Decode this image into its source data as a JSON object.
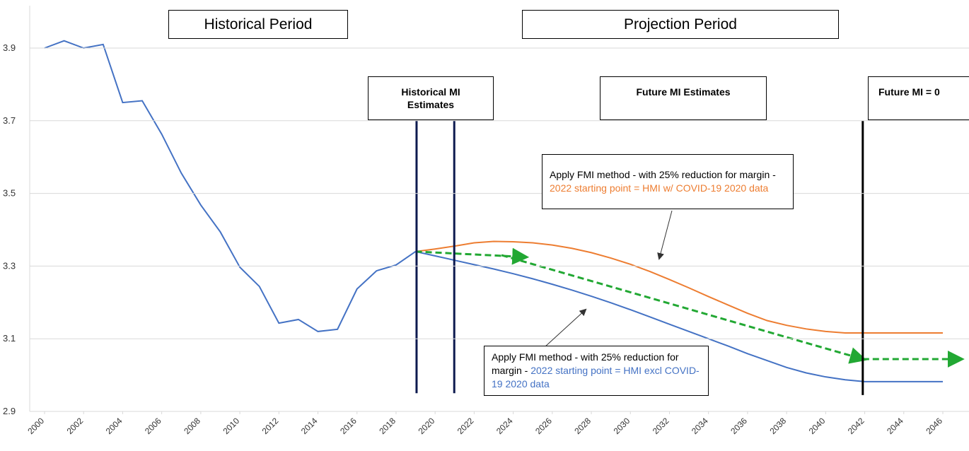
{
  "chart_data": {
    "type": "line",
    "xlim": [
      2000,
      2046
    ],
    "ylim": [
      2.9,
      4.0
    ],
    "xticks": [
      2000,
      2002,
      2004,
      2006,
      2008,
      2010,
      2012,
      2014,
      2016,
      2018,
      2020,
      2022,
      2024,
      2026,
      2028,
      2030,
      2032,
      2034,
      2036,
      2038,
      2040,
      2042,
      2044,
      2046
    ],
    "yticks": [
      2.9,
      3.1,
      3.3,
      3.5,
      3.7,
      3.9
    ],
    "grid": true,
    "series": [
      {
        "color": "#4472c4",
        "x": [
          2000,
          2001,
          2002,
          2003,
          2004,
          2005,
          2006,
          2007,
          2008,
          2009,
          2010,
          2011,
          2012,
          2013,
          2014,
          2015,
          2016,
          2017,
          2018,
          2019
        ],
        "values": [
          3.9,
          3.92,
          3.9,
          3.91,
          3.75,
          3.755,
          3.663,
          3.556,
          3.468,
          3.394,
          3.297,
          3.244,
          3.143,
          3.153,
          3.12,
          3.126,
          3.237,
          3.287,
          3.303,
          3.34
        ]
      },
      {
        "color": "#ed7d31",
        "x": [
          2019,
          2020,
          2021,
          2022,
          2023,
          2024,
          2025,
          2026,
          2027,
          2028,
          2029,
          2030,
          2031,
          2032,
          2033,
          2034,
          2035,
          2036,
          2037,
          2038,
          2039,
          2040,
          2041,
          2042,
          2043,
          2044,
          2045,
          2046
        ],
        "values": [
          3.34,
          3.347,
          3.355,
          3.364,
          3.368,
          3.367,
          3.364,
          3.358,
          3.349,
          3.337,
          3.322,
          3.305,
          3.285,
          3.263,
          3.24,
          3.216,
          3.193,
          3.17,
          3.15,
          3.137,
          3.127,
          3.12,
          3.116,
          3.116,
          3.116,
          3.116,
          3.116,
          3.116
        ]
      },
      {
        "color": "#4472c4",
        "x": [
          2019,
          2020,
          2021,
          2022,
          2023,
          2024,
          2025,
          2026,
          2027,
          2028,
          2029,
          2030,
          2031,
          2032,
          2033,
          2034,
          2035,
          2036,
          2037,
          2038,
          2039,
          2040,
          2041,
          2042,
          2043,
          2044,
          2045,
          2046
        ],
        "values": [
          3.34,
          3.328,
          3.316,
          3.304,
          3.292,
          3.279,
          3.265,
          3.25,
          3.234,
          3.217,
          3.199,
          3.18,
          3.16,
          3.14,
          3.12,
          3.1,
          3.08,
          3.059,
          3.04,
          3.021,
          3.006,
          2.995,
          2.987,
          2.982,
          2.982,
          2.982,
          2.982,
          2.982
        ]
      }
    ],
    "arrows": [
      {
        "color": "#22a833",
        "x": [
          2019,
          2024.6
        ],
        "values": [
          3.34,
          3.325
        ]
      },
      {
        "color": "#22a833",
        "x": [
          2023.4,
          2041.9
        ],
        "values": [
          3.33,
          3.044
        ]
      },
      {
        "color": "#22a833",
        "x": [
          2041.9,
          2046.9
        ],
        "values": [
          3.044,
          3.044
        ]
      }
    ],
    "vlines": [
      {
        "color": "#0d1a4f",
        "x": 2019.05,
        "values": [
          3.7,
          2.95
        ]
      },
      {
        "color": "#0d1a4f",
        "x": 2020.98,
        "values": [
          3.7,
          2.95
        ]
      },
      {
        "color": "#000000",
        "x": 2041.9,
        "values": [
          3.7,
          2.945
        ]
      }
    ],
    "labels": {
      "historical_period": "Historical Period",
      "projection_period": "Projection Period",
      "historical_mi": "Historical MI Estimates",
      "future_mi": "Future MI Estimates",
      "future_mi_zero": "Future MI = 0"
    },
    "annotations": [
      {
        "text": "Apply FMI method - with 25% reduction for margin - ",
        "highlight": "2022 starting point = HMI w/ COVID-19 2020 data",
        "color": "#ed7d31"
      },
      {
        "text": "Apply FMI method - with 25% reduction for margin - ",
        "highlight": "2022 starting point = HMI excl COVID-19 2020 data",
        "color": "#4472c4"
      }
    ]
  }
}
